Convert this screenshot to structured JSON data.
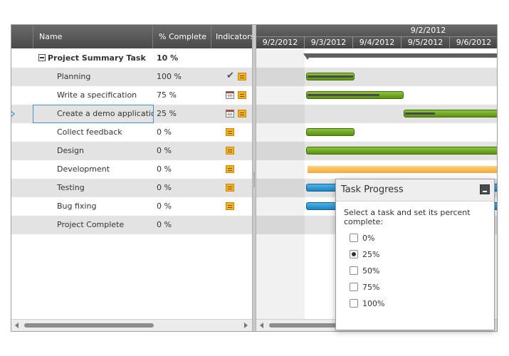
{
  "grid": {
    "columns": {
      "name": "Name",
      "percent_complete": "% Complete",
      "indicators": "Indicators"
    },
    "rows": [
      {
        "name": "Project Summary Task",
        "percent": "10 %",
        "indicators": []
      },
      {
        "name": "Planning",
        "percent": "100 %",
        "indicators": [
          "checkmark-icon",
          "note-icon"
        ]
      },
      {
        "name": "Write a specification",
        "percent": "75 %",
        "indicators": [
          "calendar-icon",
          "note-icon"
        ]
      },
      {
        "name": "Create a demo application",
        "percent": "25 %",
        "indicators": [
          "calendar-icon",
          "note-icon"
        ]
      },
      {
        "name": "Collect feedback",
        "percent": "0 %",
        "indicators": [
          "note-icon"
        ]
      },
      {
        "name": "Design",
        "percent": "0 %",
        "indicators": [
          "note-icon"
        ]
      },
      {
        "name": "Development",
        "percent": "0 %",
        "indicators": [
          "note-icon"
        ]
      },
      {
        "name": "Testing",
        "percent": "0 %",
        "indicators": [
          "note-icon"
        ]
      },
      {
        "name": "Bug fixing",
        "percent": "0 %",
        "indicators": [
          "note-icon"
        ]
      },
      {
        "name": "Project Complete",
        "percent": "0 %",
        "indicators": []
      }
    ]
  },
  "timeline": {
    "week_label": "9/2/2012",
    "days": [
      "9/2/2012",
      "9/3/2012",
      "9/4/2012",
      "9/5/2012",
      "9/6/2012"
    ]
  },
  "dialog": {
    "title": "Task Progress",
    "instruction": "Select a task and set its percent complete:",
    "options": [
      "0%",
      "25%",
      "50%",
      "75%",
      "100%"
    ],
    "selected": "25%"
  },
  "colors": {
    "bar_green": "#6fa82a",
    "bar_blue": "#2a97d4",
    "bar_orange": "#f7b84a",
    "header_bg": "#555555",
    "selection_border": "#4a8fc8"
  }
}
